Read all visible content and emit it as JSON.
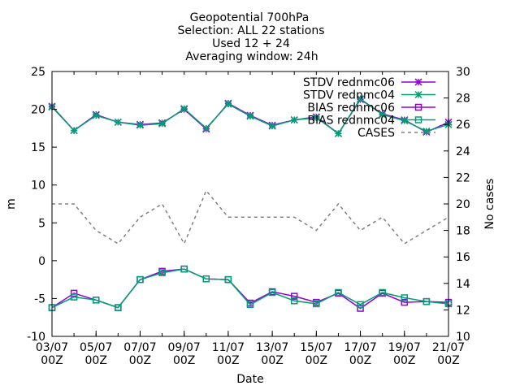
{
  "chart_data": {
    "type": "line",
    "title_lines": [
      "Geopotential 700hPa",
      "Selection: ALL      22 stations",
      "Used 12 + 24",
      "Averaging window: 24h"
    ],
    "xlabel": "Date",
    "ylabel": "m",
    "y2label": "No cases",
    "x": [
      "03/07",
      "04/07",
      "05/07",
      "06/07",
      "07/07",
      "08/07",
      "09/07",
      "10/07",
      "11/07",
      "12/07",
      "13/07",
      "14/07",
      "15/07",
      "16/07",
      "17/07",
      "18/07",
      "19/07",
      "20/07",
      "21/07"
    ],
    "x_ticks": [
      {
        "date": "03/07",
        "line1": "03/07",
        "line2": "00Z"
      },
      {
        "date": "05/07",
        "line1": "05/07",
        "line2": "00Z"
      },
      {
        "date": "07/07",
        "line1": "07/07",
        "line2": "00Z"
      },
      {
        "date": "09/07",
        "line1": "09/07",
        "line2": "00Z"
      },
      {
        "date": "11/07",
        "line1": "11/07",
        "line2": "00Z"
      },
      {
        "date": "13/07",
        "line1": "13/07",
        "line2": "00Z"
      },
      {
        "date": "15/07",
        "line1": "15/07",
        "line2": "00Z"
      },
      {
        "date": "17/07",
        "line1": "17/07",
        "line2": "00Z"
      },
      {
        "date": "19/07",
        "line1": "19/07",
        "line2": "00Z"
      },
      {
        "date": "21/07",
        "line1": "21/07",
        "line2": "00Z"
      }
    ],
    "ylim": [
      -10,
      25
    ],
    "y_ticks": [
      -10,
      -5,
      0,
      5,
      10,
      15,
      20,
      25
    ],
    "y2lim": [
      10,
      30
    ],
    "y2_ticks": [
      10,
      12,
      14,
      16,
      18,
      20,
      22,
      24,
      26,
      28,
      30
    ],
    "legend_position": "top-right",
    "series": [
      {
        "name": "STDV rednmc06",
        "axis": "left",
        "color": "#9400d3",
        "marker": "asterisk",
        "values": [
          20.4,
          17.2,
          19.3,
          18.3,
          18.0,
          18.2,
          20.0,
          17.4,
          20.8,
          19.2,
          17.9,
          18.6,
          19.0,
          16.8,
          21.3,
          19.4,
          18.6,
          17.0,
          18.3
        ]
      },
      {
        "name": "STDV rednmc04",
        "axis": "left",
        "color": "#009e73",
        "marker": "asterisk",
        "values": [
          20.3,
          17.2,
          19.2,
          18.3,
          17.9,
          18.1,
          20.1,
          17.5,
          20.7,
          19.1,
          17.8,
          18.6,
          18.9,
          16.8,
          21.4,
          19.3,
          18.5,
          17.1,
          18.0
        ]
      },
      {
        "name": "BIAS rednmc06",
        "axis": "left",
        "color": "#9400d3",
        "marker": "square",
        "values": [
          -6.2,
          -4.3,
          -5.2,
          -6.2,
          -2.5,
          -1.4,
          -1.1,
          -2.4,
          -2.5,
          -5.6,
          -4.1,
          -4.7,
          -5.5,
          -4.3,
          -6.3,
          -4.3,
          -5.5,
          -5.4,
          -5.5
        ]
      },
      {
        "name": "BIAS rednmc04",
        "axis": "left",
        "color": "#009e73",
        "marker": "square",
        "values": [
          -6.2,
          -4.8,
          -5.2,
          -6.2,
          -2.5,
          -1.6,
          -1.1,
          -2.4,
          -2.5,
          -5.8,
          -4.2,
          -5.3,
          -5.7,
          -4.2,
          -5.8,
          -4.2,
          -4.9,
          -5.4,
          -5.7
        ]
      },
      {
        "name": "CASES",
        "axis": "right",
        "color": "#808080",
        "marker": "none",
        "dashed": true,
        "values": [
          20,
          20,
          18,
          17,
          19,
          20,
          17,
          21,
          19,
          19,
          19,
          19,
          18,
          20,
          18,
          19,
          17,
          18,
          19
        ]
      }
    ]
  }
}
